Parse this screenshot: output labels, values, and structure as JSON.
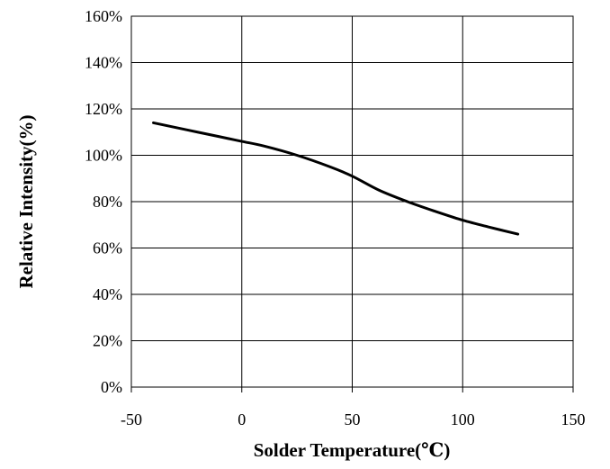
{
  "chart_data": {
    "type": "line",
    "title": "",
    "xlabel": "Solder Temperature(℃)",
    "ylabel": "Relative Intensity(%)",
    "xlim": [
      -50,
      150
    ],
    "ylim": [
      0,
      160
    ],
    "x_ticks": [
      -50,
      0,
      50,
      100,
      150
    ],
    "x_tick_labels": [
      "-50",
      "0",
      "50",
      "100",
      "150"
    ],
    "y_ticks": [
      0,
      20,
      40,
      60,
      80,
      100,
      120,
      140,
      160
    ],
    "y_tick_labels": [
      "0%",
      "20%",
      "40%",
      "60%",
      "80%",
      "100%",
      "120%",
      "140%",
      "160%"
    ],
    "grid": true,
    "line_color": "#000000",
    "series": [
      {
        "x": [
          -40,
          -25,
          -10,
          0,
          10,
          25,
          40,
          50,
          62,
          75,
          87,
          100,
          112,
          125
        ],
        "values": [
          114,
          111,
          108,
          106,
          104,
          100,
          95,
          91,
          85,
          80,
          76,
          72,
          69,
          66
        ]
      }
    ]
  }
}
